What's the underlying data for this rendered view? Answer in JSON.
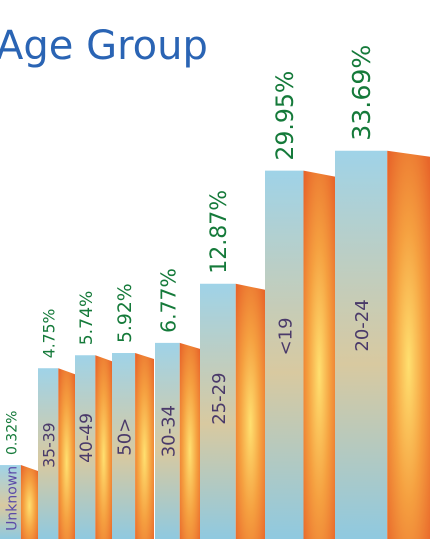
{
  "chart_data": {
    "type": "bar",
    "title": "Age Group",
    "categories": [
      "Unknown",
      "35-39",
      "40-49",
      "50>",
      "30-34",
      "25-29",
      "<19",
      "20-24"
    ],
    "values": [
      0.32,
      4.75,
      5.74,
      5.92,
      6.77,
      12.87,
      29.95,
      33.69
    ],
    "value_labels": [
      "0.32%",
      "4.75%",
      "5.74%",
      "5.92%",
      "6.77%",
      "12.87%",
      "29.95%",
      "33.69%"
    ],
    "color": "#f08a30"
  }
}
